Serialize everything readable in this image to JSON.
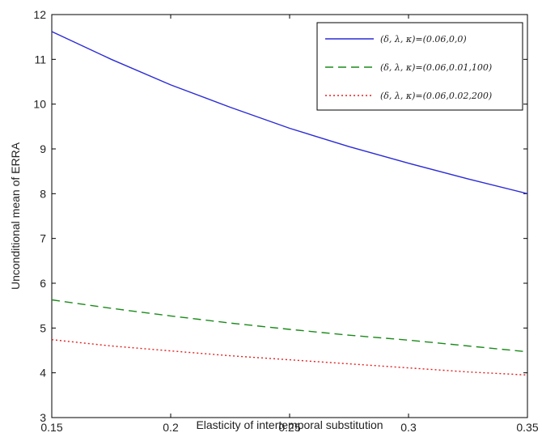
{
  "chart_data": {
    "type": "line",
    "xlabel": "Elasticity of intertemporal substitution",
    "ylabel": "Unconditional mean of ERRA",
    "xlim": [
      0.15,
      0.35
    ],
    "ylim": [
      3,
      12
    ],
    "xticks": [
      "0.15",
      "0.2",
      "0.25",
      "0.3",
      "0.35"
    ],
    "yticks": [
      "3",
      "4",
      "5",
      "6",
      "7",
      "8",
      "9",
      "10",
      "11",
      "12"
    ],
    "grid": false,
    "legend_position": "top-right",
    "series": [
      {
        "name": "(δ, λ, κ)=(0.06,0,0)",
        "color": "#2b2bd6",
        "style": "solid",
        "x": [
          0.15,
          0.175,
          0.2,
          0.225,
          0.25,
          0.275,
          0.3,
          0.325,
          0.35
        ],
        "y": [
          11.62,
          11.0,
          10.43,
          9.93,
          9.46,
          9.05,
          8.68,
          8.33,
          8.0
        ]
      },
      {
        "name": "(δ, λ, κ)=(0.06,0.01,100)",
        "color": "#1a8a1a",
        "style": "dashed",
        "x": [
          0.15,
          0.175,
          0.2,
          0.225,
          0.25,
          0.275,
          0.3,
          0.325,
          0.35
        ],
        "y": [
          5.63,
          5.44,
          5.27,
          5.11,
          4.97,
          4.84,
          4.73,
          4.6,
          4.47
        ]
      },
      {
        "name": "(δ, λ, κ)=(0.06,0.02,200)",
        "color": "#e02020",
        "style": "dotted",
        "x": [
          0.15,
          0.175,
          0.2,
          0.225,
          0.25,
          0.275,
          0.3,
          0.325,
          0.35
        ],
        "y": [
          4.74,
          4.6,
          4.49,
          4.38,
          4.29,
          4.2,
          4.11,
          4.02,
          3.95
        ]
      }
    ]
  }
}
